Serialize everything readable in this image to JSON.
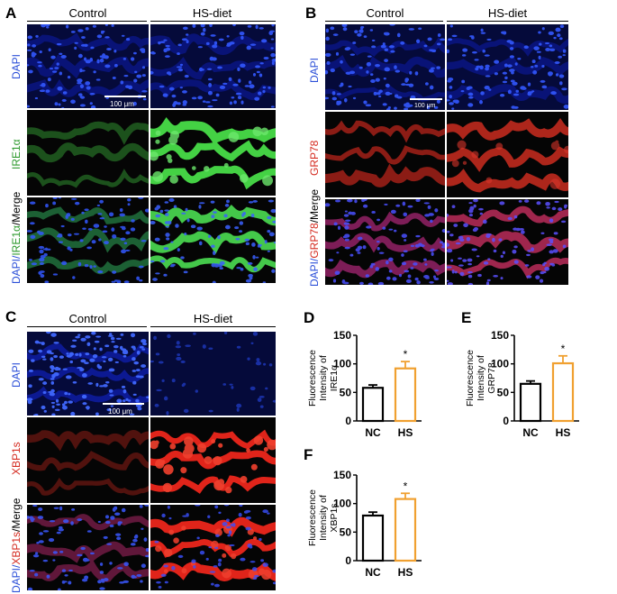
{
  "figure": {
    "panels": {
      "A": {
        "letter": "A",
        "col_left": "Control",
        "col_right": "HS-diet",
        "row_labels": {
          "dapi": "DAPI",
          "marker": "IRE1α",
          "merge_dapi": "DAPI/",
          "merge_marker": "IRE1α",
          "merge_suffix": "/Merge"
        },
        "scale": "100 μm"
      },
      "B": {
        "letter": "B",
        "col_left": "Control",
        "col_right": "HS-diet",
        "row_labels": {
          "dapi": "DAPI",
          "marker": "GRP78",
          "merge_dapi": "DAPI/",
          "merge_marker": "GRP78",
          "merge_suffix": "/Merge"
        },
        "scale": "100 μm"
      },
      "C": {
        "letter": "C",
        "col_left": "Control",
        "col_right": "HS-diet",
        "row_labels": {
          "dapi": "DAPI",
          "marker": "XBP1s",
          "merge_dapi": "DAPI/",
          "merge_marker": "XBP1s",
          "merge_suffix": "/Merge"
        },
        "scale": "100 μm"
      },
      "D": {
        "letter": "D"
      },
      "E": {
        "letter": "E"
      },
      "F": {
        "letter": "F"
      }
    },
    "colors": {
      "dapi": "#1a2fd6",
      "ire1a": "#3fbf3f",
      "grp78": "#d8231a",
      "xbp1s": "#e0241a",
      "nc_bar": "#000000",
      "hs_bar": "#f0a030"
    }
  },
  "chart_data": [
    {
      "id": "D",
      "type": "bar",
      "categories": [
        "NC",
        "HS"
      ],
      "values": [
        58,
        92
      ],
      "errors": [
        5,
        12
      ],
      "significance": [
        "",
        "*"
      ],
      "ylabel_line1": "Fluorescence",
      "ylabel_line2": "Intensity of",
      "ylabel_line3": "IRE1α",
      "ylim": [
        0,
        150
      ],
      "yticks": [
        0,
        50,
        100,
        150
      ]
    },
    {
      "id": "E",
      "type": "bar",
      "categories": [
        "NC",
        "HS"
      ],
      "values": [
        65,
        101
      ],
      "errors": [
        5,
        13
      ],
      "significance": [
        "",
        "*"
      ],
      "ylabel_line1": "Fluorescence",
      "ylabel_line2": "Intensity of",
      "ylabel_line3": "GRP78",
      "ylim": [
        0,
        150
      ],
      "yticks": [
        0,
        50,
        100,
        150
      ]
    },
    {
      "id": "F",
      "type": "bar",
      "categories": [
        "NC",
        "HS"
      ],
      "values": [
        79,
        108
      ],
      "errors": [
        6,
        10
      ],
      "significance": [
        "",
        "*"
      ],
      "ylabel_line1": "Fluorescence",
      "ylabel_line2": "Intensity of",
      "ylabel_line3": "XBP1s",
      "ylim": [
        0,
        150
      ],
      "yticks": [
        0,
        50,
        100,
        150
      ]
    }
  ]
}
